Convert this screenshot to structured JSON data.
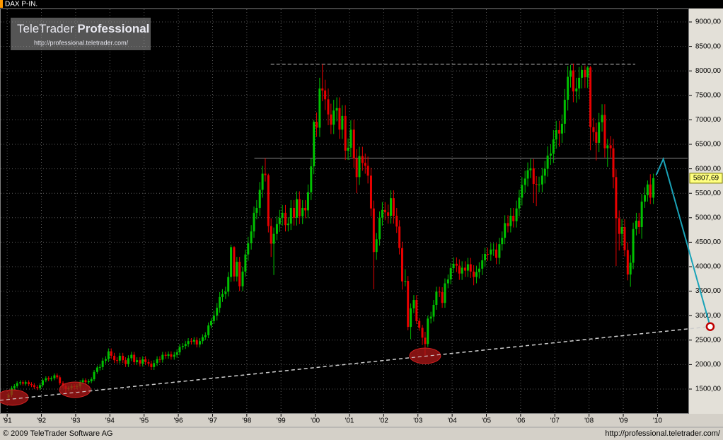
{
  "header": {
    "title": "DAX P-IN."
  },
  "logo": {
    "brand": "TeleTrader",
    "edition": "Professional",
    "url": "http://professional.teletrader.com/"
  },
  "footer": {
    "copyright": "© 2009 TeleTrader Software AG",
    "url": "http://professional.teletrader.com/"
  },
  "chart_data": {
    "type": "candlestick",
    "x": [
      1991.04,
      1991.13,
      1991.21,
      1991.29,
      1991.38,
      1991.46,
      1991.54,
      1991.63,
      1991.71,
      1991.79,
      1991.88,
      1991.96,
      1992.04,
      1992.13,
      1992.21,
      1992.29,
      1992.38,
      1992.46,
      1992.54,
      1992.63,
      1992.71,
      1992.79,
      1992.88,
      1992.96,
      1993.04,
      1993.13,
      1993.21,
      1993.29,
      1993.38,
      1993.46,
      1993.54,
      1993.63,
      1993.71,
      1993.79,
      1993.88,
      1993.96,
      1994.04,
      1994.13,
      1994.21,
      1994.29,
      1994.38,
      1994.46,
      1994.54,
      1994.63,
      1994.71,
      1994.79,
      1994.88,
      1994.96,
      1995.04,
      1995.13,
      1995.21,
      1995.29,
      1995.38,
      1995.46,
      1995.54,
      1995.63,
      1995.71,
      1995.79,
      1995.88,
      1995.96,
      1996.04,
      1996.13,
      1996.21,
      1996.29,
      1996.38,
      1996.46,
      1996.54,
      1996.63,
      1996.71,
      1996.79,
      1996.88,
      1996.96,
      1997.04,
      1997.13,
      1997.21,
      1997.29,
      1997.38,
      1997.46,
      1997.54,
      1997.63,
      1997.71,
      1997.79,
      1997.88,
      1997.96,
      1998.04,
      1998.13,
      1998.21,
      1998.29,
      1998.38,
      1998.46,
      1998.54,
      1998.63,
      1998.71,
      1998.79,
      1998.88,
      1998.96,
      1999.04,
      1999.13,
      1999.21,
      1999.29,
      1999.38,
      1999.46,
      1999.54,
      1999.63,
      1999.71,
      1999.79,
      1999.88,
      1999.96,
      2000.04,
      2000.13,
      2000.21,
      2000.29,
      2000.38,
      2000.46,
      2000.54,
      2000.63,
      2000.71,
      2000.79,
      2000.88,
      2000.96,
      2001.04,
      2001.13,
      2001.21,
      2001.29,
      2001.38,
      2001.46,
      2001.54,
      2001.63,
      2001.71,
      2001.79,
      2001.88,
      2001.96,
      2002.04,
      2002.13,
      2002.21,
      2002.29,
      2002.38,
      2002.46,
      2002.54,
      2002.63,
      2002.71,
      2002.79,
      2002.88,
      2002.96,
      2003.04,
      2003.13,
      2003.21,
      2003.29,
      2003.38,
      2003.46,
      2003.54,
      2003.63,
      2003.71,
      2003.79,
      2003.88,
      2003.96,
      2004.04,
      2004.13,
      2004.21,
      2004.29,
      2004.38,
      2004.46,
      2004.54,
      2004.63,
      2004.71,
      2004.79,
      2004.88,
      2004.96,
      2005.04,
      2005.13,
      2005.21,
      2005.29,
      2005.38,
      2005.46,
      2005.54,
      2005.63,
      2005.71,
      2005.79,
      2005.88,
      2005.96,
      2006.04,
      2006.13,
      2006.21,
      2006.29,
      2006.38,
      2006.46,
      2006.54,
      2006.63,
      2006.71,
      2006.79,
      2006.88,
      2006.96,
      2007.04,
      2007.13,
      2007.21,
      2007.29,
      2007.38,
      2007.46,
      2007.54,
      2007.63,
      2007.71,
      2007.79,
      2007.88,
      2007.96,
      2008.04,
      2008.13,
      2008.21,
      2008.29,
      2008.38,
      2008.46,
      2008.54,
      2008.63,
      2008.71,
      2008.79,
      2008.88,
      2008.96,
      2009.04,
      2009.13,
      2009.21,
      2009.29,
      2009.38,
      2009.46,
      2009.54,
      2009.63,
      2009.71,
      2009.79,
      2009.88
    ],
    "open": [
      1330,
      1380,
      1520,
      1560,
      1620,
      1640,
      1610,
      1640,
      1600,
      1580,
      1540,
      1520,
      1580,
      1680,
      1720,
      1700,
      1720,
      1780,
      1740,
      1620,
      1560,
      1500,
      1520,
      1560,
      1545,
      1560,
      1640,
      1680,
      1640,
      1660,
      1700,
      1850,
      1940,
      1950,
      2080,
      2110,
      2270,
      2180,
      2090,
      2080,
      2180,
      2090,
      2010,
      2130,
      2200,
      2050,
      2090,
      2020,
      2110,
      2050,
      2020,
      1950,
      2030,
      2110,
      2100,
      2200,
      2180,
      2210,
      2160,
      2200,
      2250,
      2360,
      2380,
      2420,
      2480,
      2470,
      2500,
      2410,
      2480,
      2560,
      2600,
      2800,
      2890,
      3000,
      3160,
      3380,
      3440,
      3490,
      3790,
      4400,
      3800,
      4100,
      3600,
      3900,
      4250,
      4480,
      4720,
      5100,
      5200,
      5570,
      5900,
      5870,
      4830,
      4470,
      4670,
      4870,
      5000,
      5100,
      4850,
      4880,
      5200,
      5000,
      5380,
      5030,
      5200,
      5150,
      5520,
      6050,
      6960,
      6840,
      7640,
      7600,
      7420,
      7110,
      6900,
      7190,
      7240,
      6800,
      7080,
      6370,
      6430,
      6800,
      6210,
      5830,
      6260,
      6120,
      6060,
      5860,
      5190,
      4300,
      4560,
      5000,
      5160,
      5110,
      5040,
      5400,
      5040,
      4820,
      4380,
      3700,
      3710,
      2770,
      3150,
      3320,
      2890,
      2750,
      2550,
      2420,
      2940,
      2980,
      3220,
      3490,
      3480,
      3260,
      3660,
      3740,
      3970,
      4060,
      4020,
      3860,
      3980,
      3920,
      4050,
      3900,
      3790,
      3890,
      3960,
      4130,
      4260,
      4250,
      4350,
      4350,
      4180,
      4460,
      4590,
      4890,
      4830,
      5040,
      4930,
      5190,
      5410,
      5670,
      5800,
      5970,
      6010,
      5690,
      5680,
      5680,
      5860,
      6000,
      6270,
      6310,
      6600,
      6790,
      6720,
      6920,
      7410,
      7880,
      8010,
      7580,
      7640,
      7860,
      8020,
      7870,
      8070,
      6850,
      6750,
      6530,
      6950,
      7100,
      6420,
      6480,
      6420,
      5830,
      4990,
      4670,
      4810,
      4340,
      3840,
      4080,
      4770,
      4940,
      4810,
      5330,
      5460,
      5680,
      5410
    ],
    "high": [
      1420,
      1560,
      1600,
      1660,
      1680,
      1680,
      1680,
      1680,
      1640,
      1620,
      1580,
      1620,
      1720,
      1760,
      1760,
      1760,
      1820,
      1820,
      1780,
      1660,
      1600,
      1560,
      1600,
      1600,
      1600,
      1680,
      1720,
      1720,
      1700,
      1740,
      1890,
      1980,
      2010,
      2140,
      2170,
      2330,
      2330,
      2240,
      2150,
      2240,
      2240,
      2150,
      2190,
      2260,
      2260,
      2150,
      2150,
      2170,
      2170,
      2110,
      2080,
      2090,
      2170,
      2170,
      2260,
      2260,
      2270,
      2270,
      2260,
      2310,
      2420,
      2440,
      2480,
      2540,
      2540,
      2560,
      2560,
      2540,
      2620,
      2660,
      2860,
      2950,
      3100,
      3260,
      3480,
      3540,
      3590,
      3890,
      4450,
      4420,
      4200,
      4200,
      4000,
      4350,
      4610,
      4850,
      5230,
      5360,
      5730,
      6060,
      6217,
      5900,
      4990,
      4800,
      5030,
      5160,
      5260,
      5260,
      5010,
      5360,
      5360,
      5540,
      5540,
      5360,
      5360,
      5680,
      6210,
      7000,
      7150,
      7860,
      8136,
      7820,
      7640,
      7330,
      7410,
      7460,
      7460,
      7300,
      7300,
      6620,
      6990,
      7000,
      6400,
      6450,
      6450,
      6310,
      6250,
      6020,
      5350,
      4690,
      5130,
      5320,
      5320,
      5270,
      5560,
      5560,
      5200,
      4950,
      4510,
      3950,
      3810,
      3250,
      3420,
      3420,
      2950,
      2810,
      2670,
      3000,
      3080,
      3320,
      3590,
      3590,
      3580,
      3760,
      3840,
      4070,
      4190,
      4190,
      4150,
      4110,
      4110,
      4180,
      4180,
      4030,
      4020,
      4090,
      4260,
      4390,
      4390,
      4480,
      4480,
      4480,
      4590,
      4720,
      5050,
      5050,
      5200,
      5200,
      5350,
      5570,
      5830,
      5960,
      6130,
      6200,
      6200,
      5850,
      5840,
      6020,
      6160,
      6460,
      6500,
      6790,
      6980,
      6980,
      7110,
      7630,
      8100,
      8120,
      8151,
      7860,
      8080,
      8110,
      8110,
      8100,
      8100,
      7040,
      6940,
      7140,
      7320,
      7320,
      6610,
      6670,
      6610,
      5990,
      5150,
      4970,
      4970,
      4500,
      4240,
      4900,
      5100,
      5100,
      5490,
      5620,
      5760,
      5890,
      5900
    ],
    "low": [
      1290,
      1340,
      1480,
      1520,
      1580,
      1570,
      1570,
      1560,
      1540,
      1500,
      1480,
      1480,
      1540,
      1640,
      1660,
      1660,
      1680,
      1700,
      1580,
      1520,
      1420,
      1460,
      1480,
      1500,
      1500,
      1520,
      1600,
      1600,
      1600,
      1620,
      1660,
      1810,
      1880,
      1890,
      2020,
      2050,
      2120,
      2030,
      2020,
      2020,
      2030,
      1950,
      1950,
      2070,
      1990,
      1990,
      1960,
      1960,
      1990,
      1960,
      1890,
      1890,
      1970,
      2040,
      2040,
      2120,
      2120,
      2100,
      2100,
      2140,
      2190,
      2300,
      2320,
      2360,
      2410,
      2410,
      2350,
      2350,
      2420,
      2500,
      2540,
      2740,
      2830,
      2900,
      3060,
      3280,
      3340,
      3390,
      3690,
      3700,
      3700,
      3500,
      3500,
      3800,
      4120,
      4350,
      4590,
      4970,
      5040,
      5410,
      5740,
      4700,
      4200,
      3830,
      4540,
      4710,
      4840,
      4720,
      4720,
      4750,
      4840,
      4840,
      4870,
      4870,
      4990,
      4990,
      5360,
      5890,
      6650,
      6650,
      7380,
      7200,
      6890,
      6710,
      6710,
      6970,
      6610,
      6610,
      6180,
      6180,
      6240,
      6020,
      5500,
      5670,
      5960,
      5900,
      5700,
      5030,
      3540,
      4140,
      4430,
      4840,
      4950,
      4880,
      4880,
      4880,
      4690,
      4250,
      3530,
      3600,
      2700,
      2519,
      3050,
      2830,
      2690,
      2400,
      2189,
      2360,
      2840,
      2880,
      3120,
      3380,
      3160,
      3160,
      3560,
      3640,
      3870,
      3890,
      3730,
      3730,
      3790,
      3790,
      3770,
      3620,
      3660,
      3760,
      3830,
      4000,
      4120,
      4120,
      4220,
      4050,
      4050,
      4330,
      4460,
      4700,
      4700,
      4800,
      4800,
      5030,
      5250,
      5510,
      5640,
      5810,
      5300,
      5240,
      5520,
      5520,
      5700,
      5840,
      6080,
      6120,
      6410,
      6450,
      6530,
      6730,
      7190,
      7660,
      7360,
      7350,
      7420,
      7640,
      7650,
      7650,
      6380,
      6560,
      6170,
      6340,
      6760,
      6230,
      6040,
      6230,
      5600,
      4014,
      4330,
      4430,
      4210,
      3720,
      3589,
      3950,
      4640,
      4670,
      4570,
      5200,
      5330,
      5280,
      5280
    ],
    "close": [
      1380,
      1520,
      1560,
      1620,
      1640,
      1610,
      1640,
      1600,
      1580,
      1540,
      1520,
      1580,
      1680,
      1720,
      1700,
      1720,
      1780,
      1740,
      1620,
      1560,
      1500,
      1520,
      1560,
      1545,
      1560,
      1640,
      1680,
      1640,
      1660,
      1700,
      1850,
      1940,
      1950,
      2080,
      2110,
      2270,
      2180,
      2090,
      2080,
      2180,
      2090,
      2010,
      2130,
      2200,
      2050,
      2090,
      2020,
      2110,
      2050,
      2020,
      1950,
      2030,
      2110,
      2100,
      2200,
      2180,
      2210,
      2160,
      2200,
      2250,
      2360,
      2380,
      2420,
      2480,
      2470,
      2500,
      2410,
      2480,
      2560,
      2600,
      2800,
      2890,
      3000,
      3160,
      3380,
      3440,
      3490,
      3790,
      4400,
      3800,
      4100,
      3600,
      3900,
      4250,
      4480,
      4720,
      5100,
      5200,
      5570,
      5900,
      5870,
      4830,
      4470,
      4670,
      4870,
      5000,
      5100,
      4850,
      4880,
      5200,
      5000,
      5380,
      5030,
      5200,
      5150,
      5520,
      6050,
      6960,
      6840,
      7640,
      7600,
      7420,
      7110,
      6900,
      7190,
      7240,
      6800,
      7080,
      6370,
      6430,
      6800,
      6210,
      5830,
      6260,
      6120,
      6060,
      5860,
      5190,
      4300,
      4560,
      5000,
      5160,
      5110,
      5040,
      5400,
      5040,
      4820,
      4380,
      3700,
      3710,
      2770,
      3150,
      3320,
      2890,
      2750,
      2550,
      2420,
      2940,
      2980,
      3220,
      3490,
      3480,
      3260,
      3660,
      3740,
      3970,
      4060,
      4020,
      3860,
      3980,
      3920,
      4050,
      3900,
      3790,
      3890,
      3960,
      4130,
      4260,
      4250,
      4350,
      4350,
      4180,
      4460,
      4590,
      4890,
      4830,
      5040,
      4930,
      5190,
      5410,
      5670,
      5800,
      5970,
      6010,
      5690,
      5680,
      5680,
      5860,
      6000,
      6270,
      6310,
      6600,
      6790,
      6720,
      6920,
      7410,
      7880,
      8010,
      7580,
      7640,
      7860,
      8020,
      7870,
      8070,
      6850,
      6750,
      6530,
      6950,
      7100,
      6420,
      6480,
      6420,
      5830,
      4990,
      4670,
      4810,
      4340,
      3840,
      4080,
      4770,
      4940,
      4810,
      5330,
      5460,
      5680,
      5410,
      5807.69
    ],
    "up_color": "#00c000",
    "down_color": "#e80000",
    "xlim": [
      1990.79,
      2010.88
    ],
    "ylim": [
      994,
      9275
    ],
    "xticks": [
      {
        "value": 1991,
        "label": "'91"
      },
      {
        "value": 1992,
        "label": "'92"
      },
      {
        "value": 1993,
        "label": "'93"
      },
      {
        "value": 1994,
        "label": "'94"
      },
      {
        "value": 1995,
        "label": "'95"
      },
      {
        "value": 1996,
        "label": "'96"
      },
      {
        "value": 1997,
        "label": "'97"
      },
      {
        "value": 1998,
        "label": "'98"
      },
      {
        "value": 1999,
        "label": "'99"
      },
      {
        "value": 2000,
        "label": "'00"
      },
      {
        "value": 2001,
        "label": "'01"
      },
      {
        "value": 2002,
        "label": "'02"
      },
      {
        "value": 2003,
        "label": "'03"
      },
      {
        "value": 2004,
        "label": "'04"
      },
      {
        "value": 2005,
        "label": "'05"
      },
      {
        "value": 2006,
        "label": "'06"
      },
      {
        "value": 2007,
        "label": "'07"
      },
      {
        "value": 2008,
        "label": "'08"
      },
      {
        "value": 2009,
        "label": "'09"
      },
      {
        "value": 2010,
        "label": "'10"
      }
    ],
    "yticks": [
      {
        "value": 1500,
        "label": "1500,00"
      },
      {
        "value": 2000,
        "label": "2000,00"
      },
      {
        "value": 2500,
        "label": "2500,00"
      },
      {
        "value": 3000,
        "label": "3000,00"
      },
      {
        "value": 3500,
        "label": "3500,00"
      },
      {
        "value": 4000,
        "label": "4000,00"
      },
      {
        "value": 4500,
        "label": "4500,00"
      },
      {
        "value": 5000,
        "label": "5000,00"
      },
      {
        "value": 5500,
        "label": "5500,00"
      },
      {
        "value": 6000,
        "label": "6000,00"
      },
      {
        "value": 6500,
        "label": "6500,00"
      },
      {
        "value": 7000,
        "label": "7000,00"
      },
      {
        "value": 7500,
        "label": "7500,00"
      },
      {
        "value": 8000,
        "label": "8000,00"
      },
      {
        "value": 8500,
        "label": "8500,00"
      },
      {
        "value": 9000,
        "label": "9000,00"
      }
    ],
    "grid": true,
    "last_price": {
      "value": 5807.69,
      "label": "5807,69",
      "color": "#ffff80"
    },
    "lines": [
      {
        "y": 8136,
        "x": [
          1998.7,
          2009.35
        ],
        "style": "dashed",
        "color": "#bbbbbb"
      },
      {
        "y": 6217,
        "x": [
          1998.22,
          2010.88
        ],
        "style": "solid",
        "color": "#888888"
      }
    ],
    "trendline": {
      "x": [
        1990.79,
        2011.54
      ],
      "y": [
        1270,
        2776
      ],
      "color": "#cccccc"
    },
    "projection": {
      "x": [
        2009.96,
        2010.17,
        2011.54
      ],
      "y": [
        5870,
        6200,
        2776
      ],
      "color": "#1aa3b8"
    },
    "highlights": [
      {
        "x": 1991.16,
        "y": 1327
      },
      {
        "x": 1992.98,
        "y": 1486
      },
      {
        "x": 2003.21,
        "y": 2179
      }
    ],
    "highlight_color": "#b01818"
  }
}
